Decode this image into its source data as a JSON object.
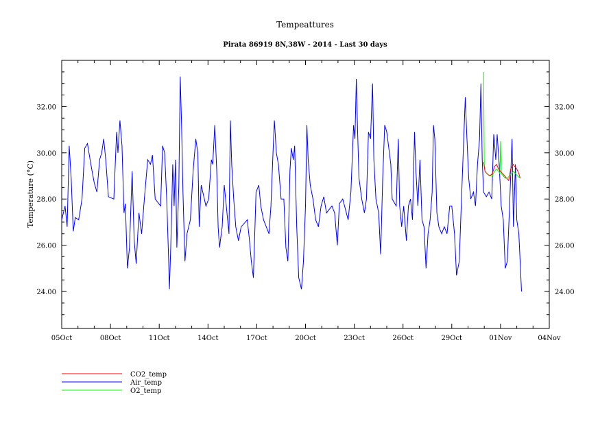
{
  "chart_data": {
    "type": "line",
    "title": "Tempeattures",
    "subtitle": "Pirata 86919 8N,38W - 2014 - Last 30 days",
    "xlabel": "",
    "ylabel": "Temperature (°C)",
    "ylim": [
      22.4,
      34.0
    ],
    "xlim": [
      "10-05 00",
      "11-04 00"
    ],
    "x_tick_labels": [
      "05Oct",
      "08Oct",
      "11Oct",
      "14Oct",
      "17Oct",
      "20Oct",
      "23Oct",
      "26Oct",
      "29Oct",
      "01Nov",
      "04Nov"
    ],
    "y_tick_labels": [
      "24.00",
      "26.00",
      "28.00",
      "30.00",
      "32.00"
    ],
    "grid": false,
    "legend_placement": "bottom-left",
    "series": [
      {
        "name": "CO2_temp",
        "color": "#ff0000",
        "points": [
          [
            "10-30 23",
            29.6
          ],
          [
            "10-31 01",
            29.2
          ],
          [
            "10-31 04",
            29.1
          ],
          [
            "10-31 08",
            29.0
          ],
          [
            "10-31 12",
            29.1
          ],
          [
            "10-31 15",
            29.4
          ],
          [
            "10-31 18",
            29.5
          ],
          [
            "10-31 21",
            29.3
          ],
          [
            "11-01 00",
            29.2
          ],
          [
            "11-01 03",
            29.1
          ],
          [
            "11-01 06",
            29.0
          ],
          [
            "11-01 09",
            28.9
          ],
          [
            "11-01 12",
            28.8
          ],
          [
            "11-01 15",
            29.3
          ],
          [
            "11-01 19",
            29.5
          ],
          [
            "11-01 21",
            29.4
          ],
          [
            "11-02 00",
            29.3
          ],
          [
            "11-02 03",
            29.1
          ],
          [
            "11-02 05",
            28.9
          ]
        ]
      },
      {
        "name": "Air_temp",
        "color": "#0000ff",
        "points": [
          [
            "10-05 00",
            27.1
          ],
          [
            "10-05 05",
            27.7
          ],
          [
            "10-05 08",
            26.8
          ],
          [
            "10-05 11",
            30.3
          ],
          [
            "10-05 14",
            28.9
          ],
          [
            "10-05 17",
            26.6
          ],
          [
            "10-05 20",
            27.2
          ],
          [
            "10-06 01",
            27.1
          ],
          [
            "10-06 06",
            28.0
          ],
          [
            "10-06 10",
            30.2
          ],
          [
            "10-06 14",
            30.4
          ],
          [
            "10-06 19",
            29.5
          ],
          [
            "10-07 00",
            28.7
          ],
          [
            "10-07 04",
            28.3
          ],
          [
            "10-07 08",
            29.7
          ],
          [
            "10-07 11",
            30.0
          ],
          [
            "10-07 14",
            30.6
          ],
          [
            "10-07 17",
            29.7
          ],
          [
            "10-07 21",
            28.1
          ],
          [
            "10-08 05",
            28.0
          ],
          [
            "10-08 09",
            30.9
          ],
          [
            "10-08 11",
            30.0
          ],
          [
            "10-08 14",
            31.4
          ],
          [
            "10-08 17",
            30.3
          ],
          [
            "10-08 20",
            27.4
          ],
          [
            "10-08 22",
            27.8
          ],
          [
            "10-09 01",
            25.0
          ],
          [
            "10-09 04",
            25.9
          ],
          [
            "10-09 08",
            29.2
          ],
          [
            "10-09 11",
            26.2
          ],
          [
            "10-09 14",
            25.2
          ],
          [
            "10-09 18",
            27.4
          ],
          [
            "10-09 22",
            26.5
          ],
          [
            "10-10 02",
            28.0
          ],
          [
            "10-10 07",
            29.7
          ],
          [
            "10-10 11",
            29.5
          ],
          [
            "10-10 14",
            29.9
          ],
          [
            "10-10 18",
            28.0
          ],
          [
            "10-11 02",
            27.7
          ],
          [
            "10-11 05",
            30.3
          ],
          [
            "10-11 08",
            30.0
          ],
          [
            "10-11 11",
            28.0
          ],
          [
            "10-11 14",
            25.3
          ],
          [
            "10-11 15",
            24.1
          ],
          [
            "10-11 17",
            25.9
          ],
          [
            "10-11 20",
            29.5
          ],
          [
            "10-11 22",
            27.7
          ],
          [
            "10-12 00",
            29.7
          ],
          [
            "10-12 02",
            25.9
          ],
          [
            "10-12 05",
            28.6
          ],
          [
            "10-12 07",
            33.3
          ],
          [
            "10-12 09",
            31.2
          ],
          [
            "10-12 11",
            28.3
          ],
          [
            "10-12 14",
            25.3
          ],
          [
            "10-12 17",
            26.5
          ],
          [
            "10-12 22",
            27.1
          ],
          [
            "10-13 02",
            29.2
          ],
          [
            "10-13 06",
            30.6
          ],
          [
            "10-13 09",
            30.0
          ],
          [
            "10-13 11",
            26.8
          ],
          [
            "10-13 14",
            28.6
          ],
          [
            "10-13 21",
            27.7
          ],
          [
            "10-14 01",
            28.0
          ],
          [
            "10-14 05",
            29.7
          ],
          [
            "10-14 07",
            29.5
          ],
          [
            "10-14 10",
            31.2
          ],
          [
            "10-14 13",
            29.2
          ],
          [
            "10-14 15",
            26.8
          ],
          [
            "10-14 17",
            25.9
          ],
          [
            "10-14 21",
            26.8
          ],
          [
            "10-15 00",
            28.6
          ],
          [
            "10-15 03",
            27.7
          ],
          [
            "10-15 07",
            26.5
          ],
          [
            "10-15 09",
            31.4
          ],
          [
            "10-15 11",
            29.5
          ],
          [
            "10-15 14",
            28.0
          ],
          [
            "10-15 17",
            26.8
          ],
          [
            "10-15 21",
            26.2
          ],
          [
            "10-16 01",
            26.8
          ],
          [
            "10-16 10",
            27.1
          ],
          [
            "10-16 13",
            26.3
          ],
          [
            "10-16 16",
            25.3
          ],
          [
            "10-16 19",
            24.6
          ],
          [
            "10-16 23",
            28.3
          ],
          [
            "10-17 03",
            28.6
          ],
          [
            "10-17 06",
            27.7
          ],
          [
            "10-17 10",
            27.1
          ],
          [
            "10-17 18",
            26.5
          ],
          [
            "10-17 21",
            27.7
          ],
          [
            "10-18 00",
            30.0
          ],
          [
            "10-18 02",
            31.4
          ],
          [
            "10-18 05",
            30.0
          ],
          [
            "10-18 08",
            29.5
          ],
          [
            "10-18 12",
            28.0
          ],
          [
            "10-18 16",
            28.0
          ],
          [
            "10-18 19",
            25.9
          ],
          [
            "10-18 22",
            25.3
          ],
          [
            "10-19 01",
            29.2
          ],
          [
            "10-19 03",
            30.2
          ],
          [
            "10-19 06",
            29.7
          ],
          [
            "10-19 08",
            30.3
          ],
          [
            "10-19 11",
            26.8
          ],
          [
            "10-19 14",
            24.6
          ],
          [
            "10-19 18",
            24.1
          ],
          [
            "10-19 21",
            25.3
          ],
          [
            "10-20 00",
            27.7
          ],
          [
            "10-20 02",
            31.2
          ],
          [
            "10-20 04",
            29.7
          ],
          [
            "10-20 07",
            28.6
          ],
          [
            "10-20 11",
            28.0
          ],
          [
            "10-20 15",
            27.1
          ],
          [
            "10-20 19",
            26.8
          ],
          [
            "10-20 23",
            27.7
          ],
          [
            "10-21 03",
            28.1
          ],
          [
            "10-21 07",
            27.4
          ],
          [
            "10-21 15",
            27.7
          ],
          [
            "10-21 19",
            27.4
          ],
          [
            "10-21 23",
            26.0
          ],
          [
            "10-22 02",
            27.8
          ],
          [
            "10-22 07",
            28.0
          ],
          [
            "10-22 15",
            27.1
          ],
          [
            "10-22 19",
            28.3
          ],
          [
            "10-22 23",
            31.2
          ],
          [
            "10-23 01",
            30.6
          ],
          [
            "10-23 03",
            33.2
          ],
          [
            "10-23 05",
            30.9
          ],
          [
            "10-23 07",
            28.9
          ],
          [
            "10-23 11",
            28.0
          ],
          [
            "10-23 15",
            27.4
          ],
          [
            "10-23 18",
            28.0
          ],
          [
            "10-23 21",
            30.9
          ],
          [
            "10-24 00",
            30.6
          ],
          [
            "10-24 03",
            33.0
          ],
          [
            "10-24 05",
            29.7
          ],
          [
            "10-24 08",
            28.0
          ],
          [
            "10-24 12",
            27.4
          ],
          [
            "10-24 15",
            25.6
          ],
          [
            "10-24 18",
            28.9
          ],
          [
            "10-24 21",
            31.2
          ],
          [
            "10-25 00",
            30.9
          ],
          [
            "10-25 03",
            30.2
          ],
          [
            "10-25 06",
            29.5
          ],
          [
            "10-25 08",
            28.0
          ],
          [
            "10-25 14",
            27.7
          ],
          [
            "10-25 17",
            30.6
          ],
          [
            "10-25 19",
            27.7
          ],
          [
            "10-25 22",
            26.8
          ],
          [
            "10-26 01",
            27.7
          ],
          [
            "10-26 05",
            26.2
          ],
          [
            "10-26 08",
            27.7
          ],
          [
            "10-26 11",
            28.0
          ],
          [
            "10-26 14",
            27.1
          ],
          [
            "10-26 17",
            30.9
          ],
          [
            "10-26 19",
            29.2
          ],
          [
            "10-26 22",
            27.7
          ],
          [
            "10-27 01",
            29.7
          ],
          [
            "10-27 04",
            27.1
          ],
          [
            "10-27 07",
            26.8
          ],
          [
            "10-27 10",
            25.0
          ],
          [
            "10-27 13",
            26.5
          ],
          [
            "10-27 16",
            27.1
          ],
          [
            "10-27 19",
            28.3
          ],
          [
            "10-27 21",
            31.2
          ],
          [
            "10-27 23",
            30.6
          ],
          [
            "10-28 02",
            27.4
          ],
          [
            "10-28 05",
            26.8
          ],
          [
            "10-28 09",
            26.5
          ],
          [
            "10-28 13",
            26.8
          ],
          [
            "10-28 17",
            26.5
          ],
          [
            "10-28 21",
            27.7
          ],
          [
            "10-29 00",
            27.7
          ],
          [
            "10-29 04",
            26.5
          ],
          [
            "10-29 07",
            24.7
          ],
          [
            "10-29 11",
            25.3
          ],
          [
            "10-29 14",
            27.7
          ],
          [
            "10-29 18",
            30.9
          ],
          [
            "10-29 20",
            32.4
          ],
          [
            "10-29 22",
            30.9
          ],
          [
            "10-30 01",
            28.9
          ],
          [
            "10-30 04",
            28.0
          ],
          [
            "10-30 08",
            28.3
          ],
          [
            "10-30 11",
            27.7
          ],
          [
            "10-30 14",
            29.5
          ],
          [
            "10-30 17",
            30.6
          ],
          [
            "10-30 19",
            33.0
          ],
          [
            "10-30 21",
            29.7
          ],
          [
            "10-30 23",
            28.3
          ],
          [
            "10-31 03",
            28.1
          ],
          [
            "10-31 07",
            28.3
          ],
          [
            "10-31 11",
            28.0
          ],
          [
            "10-31 14",
            30.8
          ],
          [
            "10-31 17",
            29.7
          ],
          [
            "10-31 19",
            30.8
          ],
          [
            "10-31 22",
            29.5
          ],
          [
            "11-01 01",
            27.7
          ],
          [
            "11-01 04",
            27.1
          ],
          [
            "11-01 07",
            25.0
          ],
          [
            "11-01 10",
            25.3
          ],
          [
            "11-01 13",
            27.4
          ],
          [
            "11-01 17",
            30.6
          ],
          [
            "11-01 19",
            26.8
          ],
          [
            "11-01 22",
            29.5
          ],
          [
            "11-02 00",
            27.1
          ],
          [
            "11-02 03",
            26.5
          ],
          [
            "11-02 05",
            25.3
          ],
          [
            "11-02 07",
            24.0
          ]
        ]
      },
      {
        "name": "O2_temp",
        "color": "#00ff00",
        "points": [
          [
            "10-30 23",
            33.5
          ],
          [
            "10-31 00",
            29.5
          ],
          [
            "10-31 01",
            29.2
          ],
          [
            "10-31 04",
            29.1
          ],
          [
            "10-31 08",
            29.0
          ],
          [
            "10-31 12",
            29.0
          ],
          [
            "10-31 15",
            29.2
          ],
          [
            "10-31 18",
            29.3
          ],
          [
            "10-31 21",
            29.2
          ],
          [
            "10-31 23",
            29.1
          ],
          [
            "11-01 00",
            30.5
          ],
          [
            "11-01 01",
            29.1
          ],
          [
            "11-01 04",
            29.0
          ],
          [
            "11-01 07",
            28.9
          ],
          [
            "11-01 10",
            28.9
          ],
          [
            "11-01 13",
            29.0
          ],
          [
            "11-01 17",
            29.1
          ],
          [
            "11-01 19",
            29.2
          ],
          [
            "11-01 22",
            29.1
          ],
          [
            "11-02 01",
            29.0
          ],
          [
            "11-02 05",
            28.9
          ]
        ]
      }
    ]
  }
}
